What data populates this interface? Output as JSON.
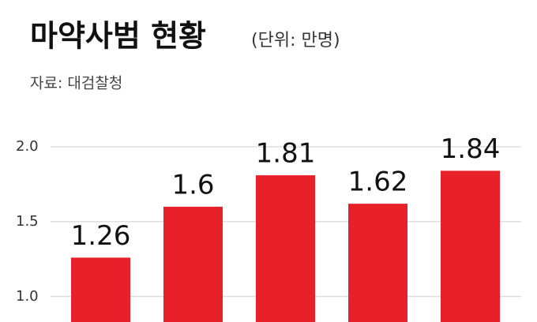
{
  "chart_data": {
    "type": "bar",
    "title": "마약사범 현황",
    "subtitle": "(단위: 만명)",
    "source": "자료: 대검찰청",
    "categories": [
      null,
      null,
      null,
      null,
      null
    ],
    "values": [
      1.26,
      1.6,
      1.81,
      1.62,
      1.84
    ],
    "color": "#e8202a",
    "ylim": [
      0.83,
      2.19
    ],
    "yticks": [
      {
        "value": 1.0,
        "label": "1.0"
      },
      1.5,
      {
        "value": 2.0,
        "label": "2.0"
      }
    ],
    "grid": true
  }
}
